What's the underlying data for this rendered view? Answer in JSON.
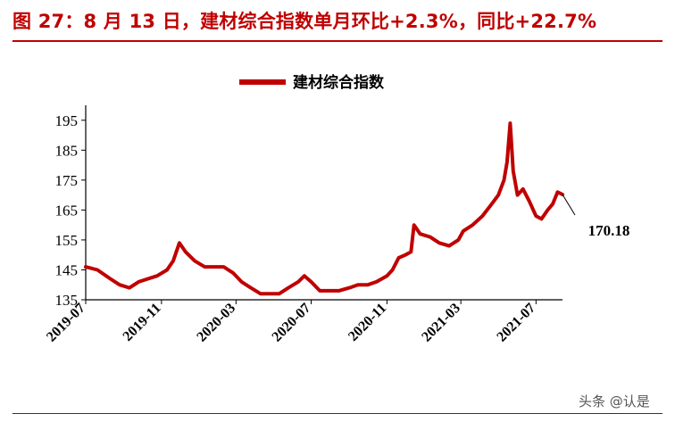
{
  "figure_title": "图 27：8 月 13 日，建材综合指数单月环比+2.3%，同比+22.7%",
  "watermark": "头条 @认是",
  "chart_data": {
    "type": "line",
    "title": "",
    "xlabel": "",
    "ylabel": "",
    "ylim": [
      135,
      200
    ],
    "yticks": [
      135,
      145,
      155,
      165,
      175,
      185,
      195
    ],
    "xticks": [
      "2019-07",
      "2019-11",
      "2020-03",
      "2020-07",
      "2020-11",
      "2021-03",
      "2021-07"
    ],
    "legend_position": "top-center",
    "grid": false,
    "end_annotation": "170.18",
    "series": [
      {
        "name": "建材综合指数",
        "color": "#c00000",
        "x": [
          "2019-07-01",
          "2019-07-20",
          "2019-08-10",
          "2019-08-25",
          "2019-09-10",
          "2019-09-25",
          "2019-10-10",
          "2019-10-25",
          "2019-11-10",
          "2019-11-20",
          "2019-11-30",
          "2019-12-10",
          "2019-12-25",
          "2020-01-10",
          "2020-01-25",
          "2020-02-10",
          "2020-02-25",
          "2020-03-10",
          "2020-03-25",
          "2020-04-10",
          "2020-04-25",
          "2020-05-10",
          "2020-05-25",
          "2020-06-10",
          "2020-06-20",
          "2020-07-01",
          "2020-07-15",
          "2020-08-01",
          "2020-08-15",
          "2020-09-01",
          "2020-09-15",
          "2020-10-01",
          "2020-10-15",
          "2020-11-01",
          "2020-11-10",
          "2020-11-20",
          "2020-12-01",
          "2020-12-10",
          "2020-12-15",
          "2020-12-25",
          "2021-01-10",
          "2021-01-25",
          "2021-02-10",
          "2021-02-25",
          "2021-03-05",
          "2021-03-20",
          "2021-04-05",
          "2021-04-20",
          "2021-05-01",
          "2021-05-10",
          "2021-05-15",
          "2021-05-20",
          "2021-05-25",
          "2021-06-01",
          "2021-06-10",
          "2021-06-20",
          "2021-07-01",
          "2021-07-10",
          "2021-07-20",
          "2021-07-28",
          "2021-08-05",
          "2021-08-13"
        ],
        "values": [
          146,
          145,
          142,
          140,
          139,
          141,
          142,
          143,
          145,
          148,
          154,
          151,
          148,
          146,
          146,
          146,
          144,
          141,
          139,
          137,
          137,
          137,
          139,
          141,
          143,
          141,
          138,
          138,
          138,
          139,
          140,
          140,
          141,
          143,
          145,
          149,
          150,
          151,
          160,
          157,
          156,
          154,
          153,
          155,
          158,
          160,
          163,
          167,
          170,
          175,
          181,
          194,
          178,
          170,
          172,
          168,
          163,
          162,
          165,
          167,
          171,
          170.18
        ]
      }
    ]
  }
}
